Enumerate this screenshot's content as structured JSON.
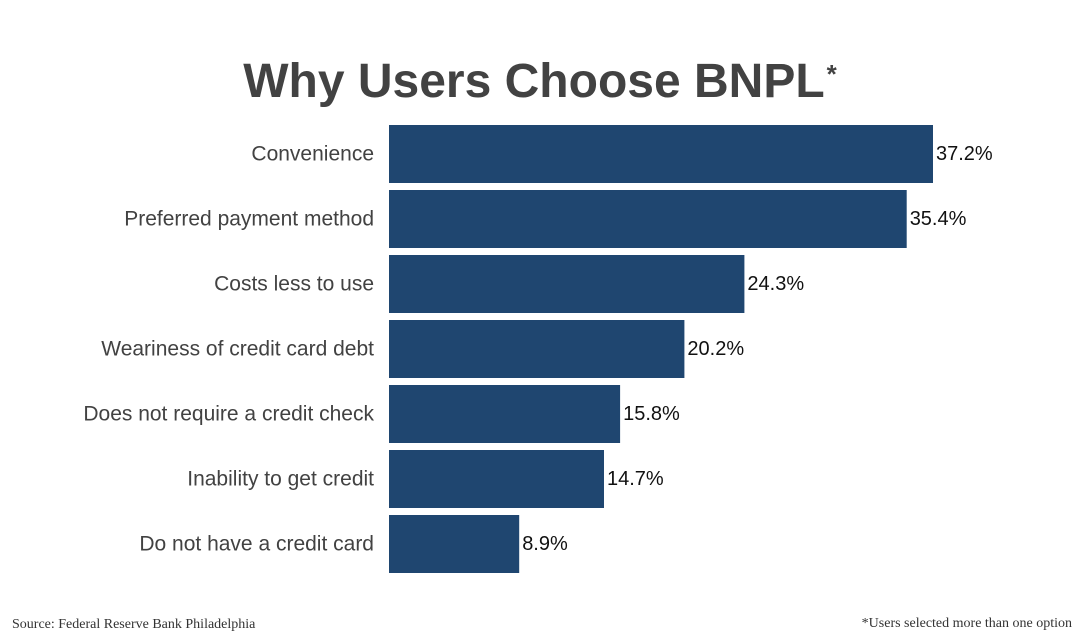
{
  "chart_data": {
    "type": "bar",
    "orientation": "horizontal",
    "title": "Why Users Choose BNPL",
    "title_marker": "*",
    "categories": [
      "Convenience",
      "Preferred payment method",
      "Costs less to use",
      "Weariness of credit card debt",
      "Does not require a credit check",
      "Inability to get credit",
      "Do not have a credit card"
    ],
    "values": [
      37.2,
      35.4,
      24.3,
      20.2,
      15.8,
      14.7,
      8.9
    ],
    "value_labels": [
      "37.2%",
      "35.4%",
      "24.3%",
      "20.2%",
      "15.8%",
      "14.7%",
      "8.9%"
    ],
    "unit": "%",
    "xlim": [
      0,
      37.2
    ],
    "grid": false,
    "legend": "none",
    "bar_color": "#1f4670"
  },
  "footer": {
    "source": "Source: Federal Reserve Bank Philadelphia",
    "note": "*Users selected more than one option"
  }
}
